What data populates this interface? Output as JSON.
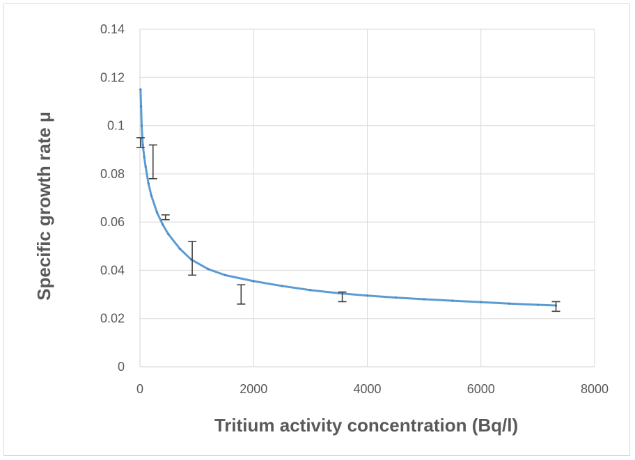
{
  "chart_data": {
    "type": "scatter",
    "title": "",
    "xlabel": "Tritium activity concentration (Bq/l)",
    "ylabel": "Specific growth rate μ",
    "xlim": [
      0,
      8000
    ],
    "ylim": [
      0,
      0.14
    ],
    "x_ticks": [
      "0",
      "2000",
      "4000",
      "6000",
      "8000"
    ],
    "y_ticks": [
      "0",
      "0.02",
      "0.04",
      "0.06",
      "0.08",
      "0.1",
      "0.12",
      "0.14"
    ],
    "x_tick_values": [
      0,
      2000,
      4000,
      6000,
      8000
    ],
    "y_tick_values": [
      0,
      0.02,
      0.04,
      0.06,
      0.08,
      0.1,
      0.12,
      0.14
    ],
    "grid": true,
    "legend": "none",
    "colors": {
      "fit": "#5b9bd5",
      "error_bars": "#404040",
      "grid": "#d9d9d9",
      "text": "#595959"
    },
    "error_bars": [
      {
        "x": 10,
        "low": 0.091,
        "high": 0.095
      },
      {
        "x": 230,
        "low": 0.078,
        "high": 0.092
      },
      {
        "x": 450,
        "low": 0.061,
        "high": 0.063
      },
      {
        "x": 920,
        "low": 0.038,
        "high": 0.052
      },
      {
        "x": 1780,
        "low": 0.026,
        "high": 0.034
      },
      {
        "x": 3560,
        "low": 0.027,
        "high": 0.031
      },
      {
        "x": 7320,
        "low": 0.023,
        "high": 0.027
      }
    ],
    "fit_curve": {
      "x": [
        10,
        20,
        30,
        50,
        75,
        100,
        150,
        200,
        300,
        400,
        500,
        700,
        900,
        1200,
        1500,
        2000,
        2500,
        3000,
        3500,
        4000,
        4500,
        5000,
        5500,
        6000,
        6500,
        7000,
        7320
      ],
      "y": [
        0.115,
        0.108,
        0.1,
        0.092,
        0.087,
        0.083,
        0.076,
        0.071,
        0.064,
        0.059,
        0.055,
        0.049,
        0.0445,
        0.0405,
        0.038,
        0.0355,
        0.0335,
        0.0318,
        0.0305,
        0.0295,
        0.0287,
        0.028,
        0.0274,
        0.0268,
        0.0262,
        0.0257,
        0.0254
      ]
    }
  }
}
